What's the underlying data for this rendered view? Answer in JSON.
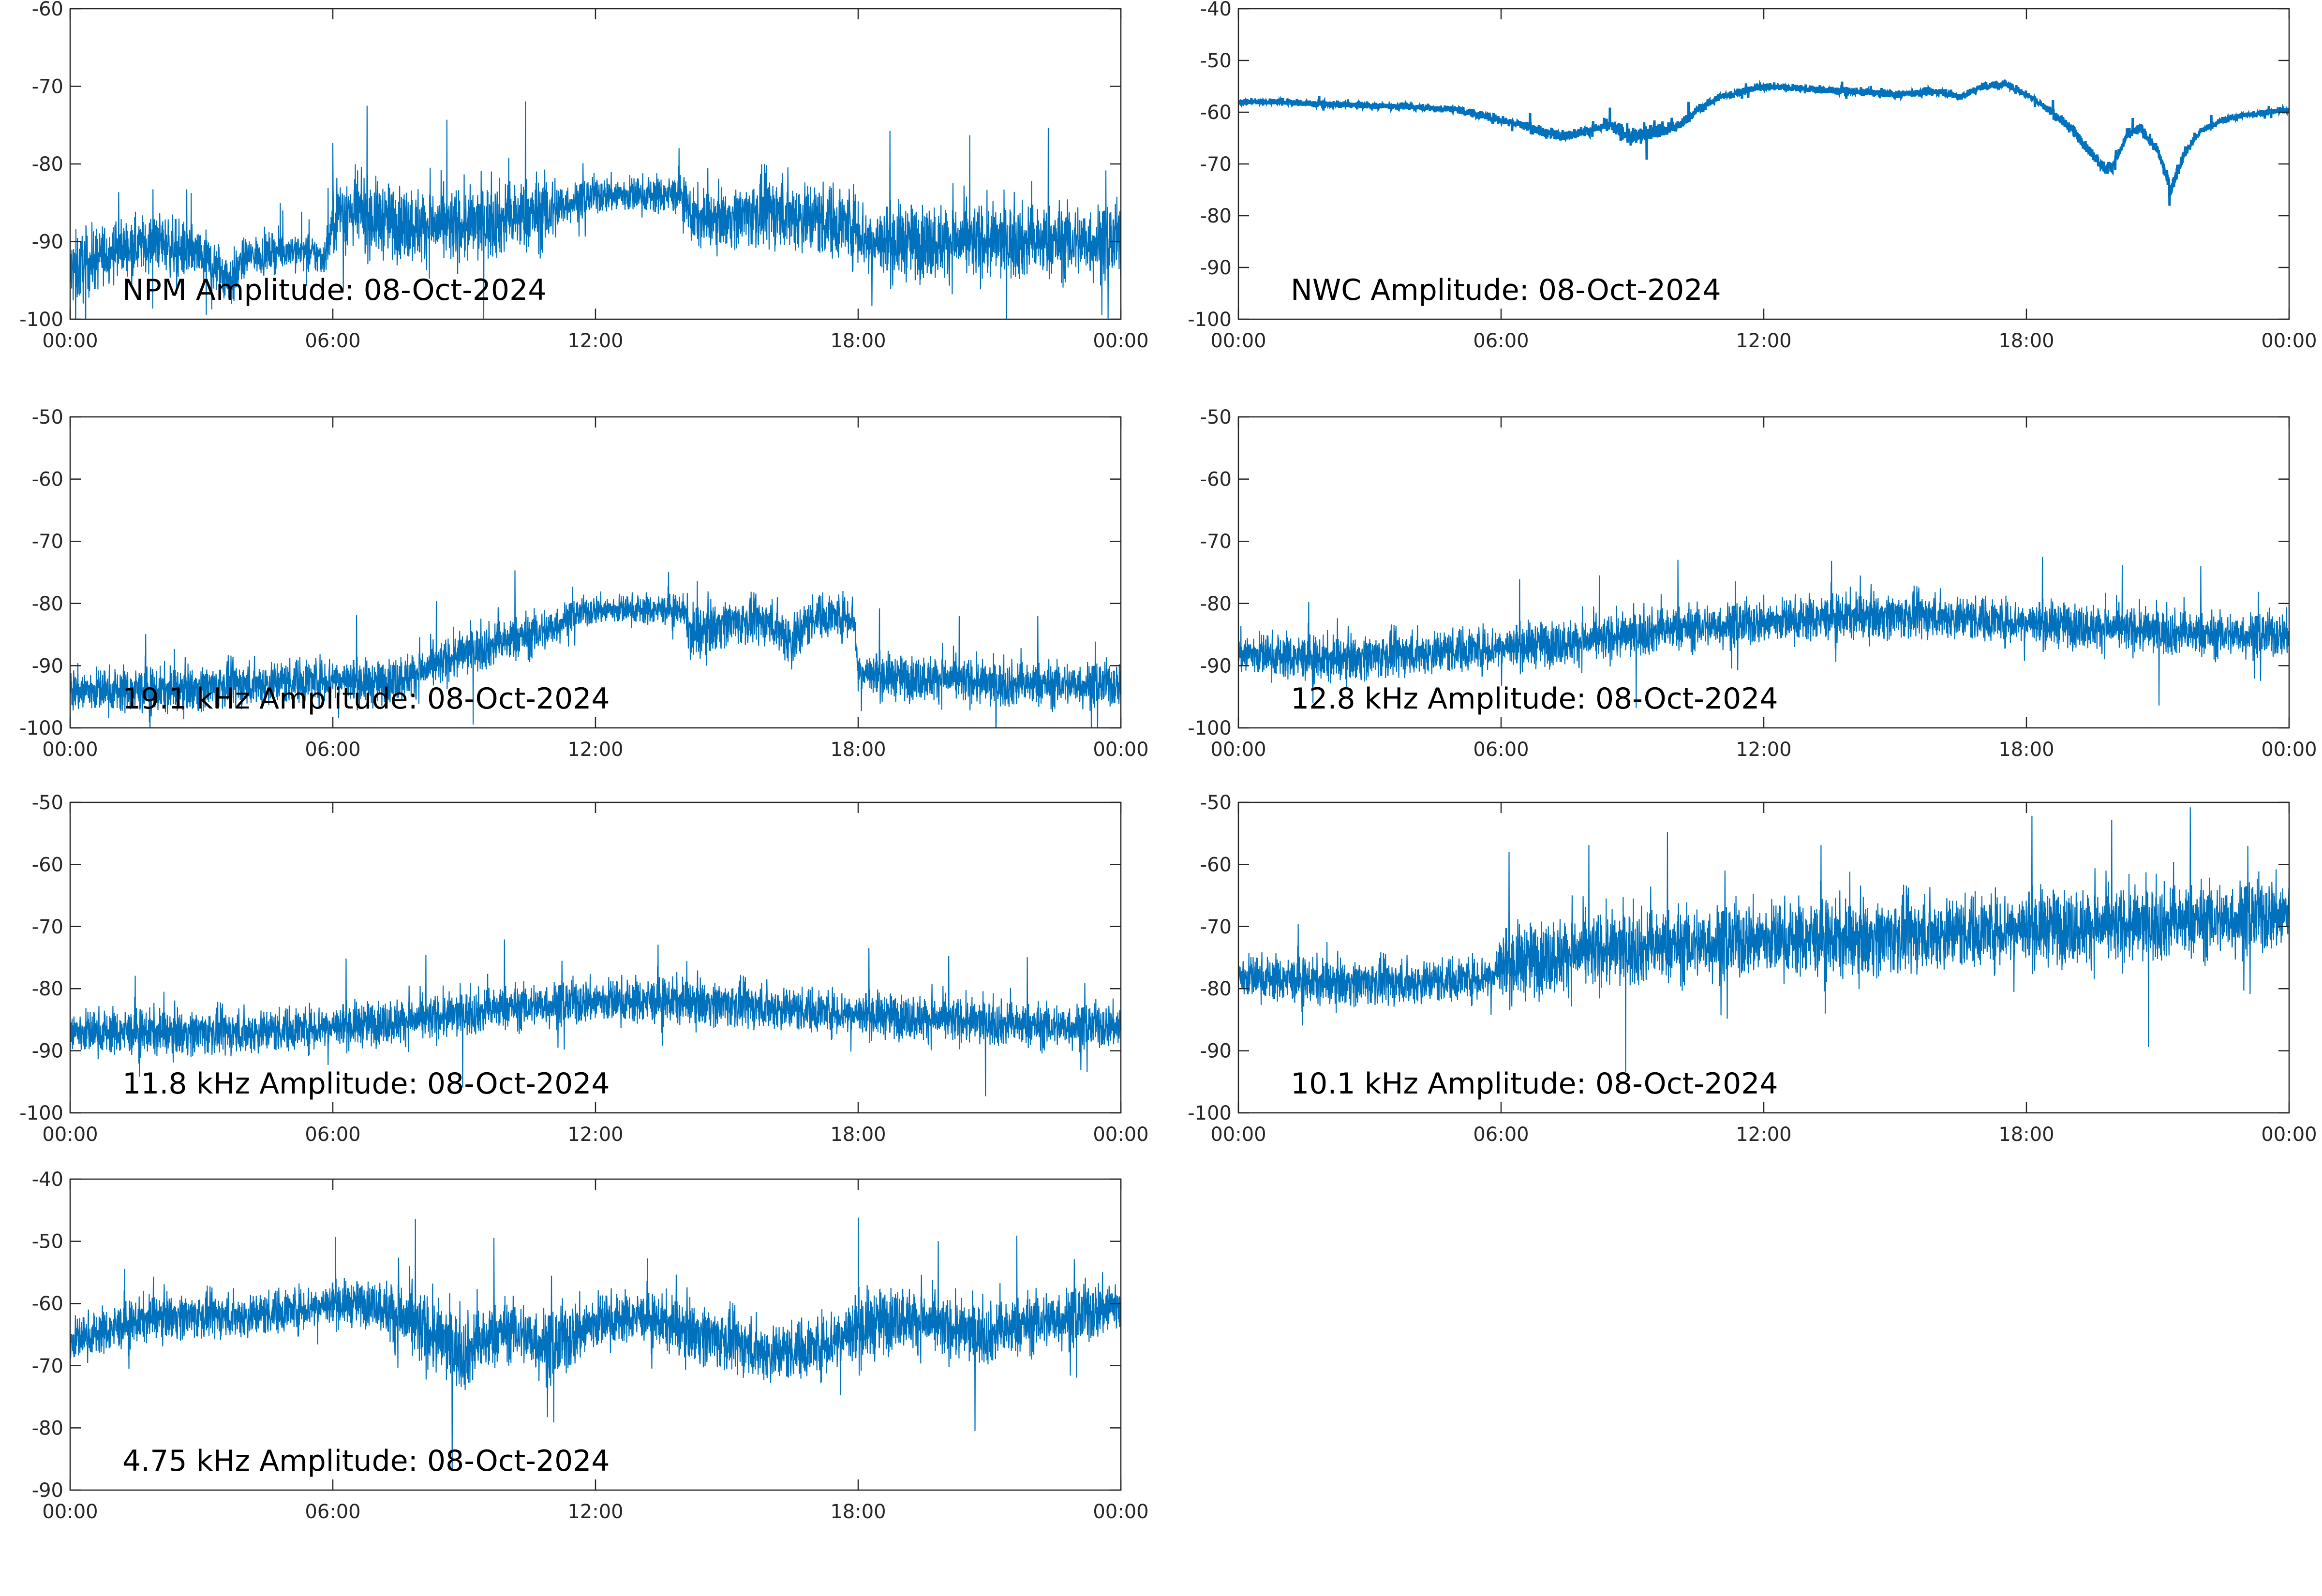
{
  "chart_data": [
    {
      "type": "line",
      "title": "NPM Amplitude: 08-Oct-2024",
      "x_tick_labels": [
        "00:00",
        "06:00",
        "12:00",
        "18:00",
        "00:00"
      ],
      "x_hours": [
        0,
        24
      ],
      "ylim": [
        -100,
        -60
      ],
      "y_ticks": [
        -60,
        -70,
        -80,
        -90,
        -100
      ],
      "color": "#0072BD",
      "series": [
        {
          "x": [
            0,
            1,
            2,
            3,
            3.7,
            4,
            5,
            5.8,
            6.1,
            7,
            8,
            9,
            10,
            11,
            11.4,
            12,
            13,
            14,
            14.2,
            15,
            16,
            17,
            18,
            18.2,
            19,
            20,
            21,
            22,
            23,
            24
          ],
          "values": [
            -94,
            -91,
            -90,
            -92,
            -95,
            -92,
            -91,
            -92,
            -86,
            -87,
            -88,
            -88,
            -87,
            -86,
            -85,
            -84,
            -84,
            -84,
            -87,
            -87,
            -86,
            -87,
            -88,
            -90,
            -90,
            -90,
            -90,
            -90,
            -90,
            -90
          ],
          "noise": [
            4,
            3,
            3,
            3,
            3,
            2,
            2,
            2,
            4,
            4,
            4,
            4,
            4,
            4,
            2,
            2,
            2,
            2,
            3,
            3,
            4,
            4,
            4,
            4,
            4,
            4,
            4,
            4,
            4,
            4
          ]
        }
      ]
    },
    {
      "type": "line",
      "title": "NWC Amplitude: 08-Oct-2024",
      "x_tick_labels": [
        "00:00",
        "06:00",
        "12:00",
        "18:00",
        "00:00"
      ],
      "x_hours": [
        0,
        24
      ],
      "ylim": [
        -100,
        -40
      ],
      "y_ticks": [
        -40,
        -50,
        -60,
        -70,
        -80,
        -90,
        -100
      ],
      "color": "#0072BD",
      "series": [
        {
          "x": [
            0,
            1,
            2,
            3,
            4,
            5,
            5.5,
            6,
            6.5,
            7,
            7.5,
            8,
            8.5,
            9,
            9.5,
            10,
            10.5,
            11,
            11.5,
            12,
            13,
            14,
            15,
            16,
            16.5,
            17,
            17.5,
            18,
            18.5,
            19,
            19.4,
            19.8,
            20,
            20.3,
            20.6,
            21,
            21.3,
            21.6,
            22,
            22.5,
            23,
            23.5,
            24
          ],
          "values": [
            -58,
            -58,
            -58.5,
            -58.7,
            -59,
            -59.5,
            -60.5,
            -61.5,
            -62.5,
            -64,
            -64.5,
            -63.5,
            -62.5,
            -65,
            -63.5,
            -63,
            -59.5,
            -57,
            -56,
            -55,
            -55.5,
            -56,
            -56.5,
            -56,
            -57,
            -55,
            -54.5,
            -56.5,
            -59.5,
            -63,
            -67,
            -71,
            -70,
            -64.5,
            -63,
            -67.5,
            -75,
            -68,
            -63.5,
            -61.5,
            -60.5,
            -60,
            -59.5
          ],
          "noise": [
            0.5,
            0.5,
            0.5,
            0.5,
            0.5,
            0.6,
            0.7,
            0.8,
            0.8,
            0.8,
            0.8,
            0.8,
            1,
            1.5,
            1.2,
            1,
            0.7,
            0.6,
            0.6,
            0.6,
            0.6,
            0.6,
            0.6,
            0.6,
            0.6,
            0.6,
            0.6,
            0.6,
            0.7,
            0.8,
            0.8,
            1,
            1,
            0.8,
            0.8,
            0.8,
            1,
            0.8,
            0.6,
            0.5,
            0.5,
            0.5,
            0.5
          ]
        }
      ]
    },
    {
      "type": "line",
      "title": "19.1 kHz Amplitude: 08-Oct-2024",
      "x_tick_labels": [
        "00:00",
        "06:00",
        "12:00",
        "18:00",
        "00:00"
      ],
      "x_hours": [
        0,
        24
      ],
      "ylim": [
        -100,
        -50
      ],
      "y_ticks": [
        -50,
        -60,
        -70,
        -80,
        -90,
        -100
      ],
      "color": "#0072BD",
      "series": [
        {
          "x": [
            0,
            2,
            4,
            6,
            7,
            8,
            9,
            10,
            11,
            11.4,
            12,
            13,
            14,
            14.2,
            15,
            16,
            16.5,
            17,
            17.9,
            18,
            19,
            20,
            21,
            22,
            23,
            24
          ],
          "values": [
            -94,
            -94,
            -93,
            -92,
            -93,
            -91,
            -88,
            -86,
            -84,
            -82,
            -81,
            -81,
            -81,
            -85,
            -83,
            -83,
            -86,
            -82,
            -82,
            -91,
            -92,
            -92,
            -93,
            -93,
            -93,
            -93
          ],
          "noise": [
            3,
            3,
            3,
            3,
            3,
            3,
            3,
            3,
            3,
            2,
            2,
            2,
            2,
            4,
            3,
            3,
            4,
            3,
            3,
            3,
            3,
            3,
            3,
            3,
            3,
            3
          ]
        }
      ]
    },
    {
      "type": "line",
      "title": "12.8 kHz Amplitude: 08-Oct-2024",
      "x_tick_labels": [
        "00:00",
        "06:00",
        "12:00",
        "18:00",
        "00:00"
      ],
      "x_hours": [
        0,
        24
      ],
      "ylim": [
        -100,
        -50
      ],
      "y_ticks": [
        -50,
        -60,
        -70,
        -80,
        -90,
        -100
      ],
      "color": "#0072BD",
      "series": [
        {
          "x": [
            0,
            2,
            4,
            6,
            8,
            10,
            12,
            14,
            16,
            18,
            20,
            22,
            24
          ],
          "values": [
            -88,
            -89,
            -88,
            -87,
            -86,
            -84,
            -83,
            -82,
            -82,
            -83,
            -84,
            -85,
            -85
          ],
          "noise": [
            3,
            3,
            3,
            3,
            3,
            3,
            3,
            3,
            3,
            3,
            3,
            3,
            3
          ]
        }
      ]
    },
    {
      "type": "line",
      "title": "11.8 kHz Amplitude: 08-Oct-2024",
      "x_tick_labels": [
        "00:00",
        "06:00",
        "12:00",
        "18:00",
        "00:00"
      ],
      "x_hours": [
        0,
        24
      ],
      "ylim": [
        -100,
        -50
      ],
      "y_ticks": [
        -50,
        -60,
        -70,
        -80,
        -90,
        -100
      ],
      "color": "#0072BD",
      "series": [
        {
          "x": [
            0,
            2,
            4,
            6,
            8,
            10,
            12,
            14,
            16,
            18,
            20,
            22,
            24
          ],
          "values": [
            -87,
            -87,
            -87,
            -86,
            -85,
            -83,
            -82,
            -82,
            -83,
            -84,
            -85,
            -86,
            -86
          ],
          "noise": [
            3,
            3,
            3,
            3,
            3,
            3,
            3,
            3,
            3,
            3,
            3,
            3,
            3
          ]
        }
      ]
    },
    {
      "type": "line",
      "title": "10.1 kHz Amplitude: 08-Oct-2024",
      "x_tick_labels": [
        "00:00",
        "06:00",
        "12:00",
        "18:00",
        "00:00"
      ],
      "x_hours": [
        0,
        24
      ],
      "ylim": [
        -100,
        -50
      ],
      "y_ticks": [
        -50,
        -60,
        -70,
        -80,
        -90,
        -100
      ],
      "color": "#0072BD",
      "series": [
        {
          "x": [
            0,
            2,
            4,
            5.8,
            6,
            8,
            10,
            12,
            14,
            16,
            18,
            20,
            22,
            24
          ],
          "values": [
            -78,
            -79,
            -79,
            -78,
            -76,
            -74,
            -73,
            -72,
            -72,
            -71,
            -70,
            -70,
            -69,
            -68
          ],
          "noise": [
            3,
            3,
            3,
            3,
            5,
            5,
            5,
            5,
            5,
            5,
            5,
            5,
            5,
            5
          ]
        }
      ]
    },
    {
      "type": "line",
      "title": "4.75 kHz Amplitude: 08-Oct-2024",
      "x_tick_labels": [
        "00:00",
        "06:00",
        "12:00",
        "18:00",
        "00:00"
      ],
      "x_hours": [
        0,
        24
      ],
      "ylim": [
        -90,
        -40
      ],
      "y_ticks": [
        -40,
        -50,
        -60,
        -70,
        -80,
        -90
      ],
      "color": "#0072BD",
      "series": [
        {
          "x": [
            0,
            1,
            2,
            3,
            4,
            5,
            6,
            7,
            7.5,
            8,
            9,
            10,
            11,
            12,
            13,
            14,
            15,
            16,
            17,
            18,
            19,
            20,
            21,
            22,
            23,
            24
          ],
          "values": [
            -66,
            -64,
            -62,
            -62,
            -62,
            -61,
            -60,
            -60,
            -62,
            -64,
            -68,
            -64,
            -67,
            -63,
            -62,
            -64,
            -66,
            -68,
            -67,
            -64,
            -62,
            -64,
            -65,
            -63,
            -62,
            -60
          ],
          "noise": [
            3,
            3,
            3,
            3,
            3,
            3,
            3,
            3,
            5,
            5,
            5,
            4,
            5,
            4,
            3,
            4,
            4,
            4,
            4,
            5,
            4,
            4,
            4,
            4,
            4,
            4
          ]
        }
      ]
    }
  ]
}
